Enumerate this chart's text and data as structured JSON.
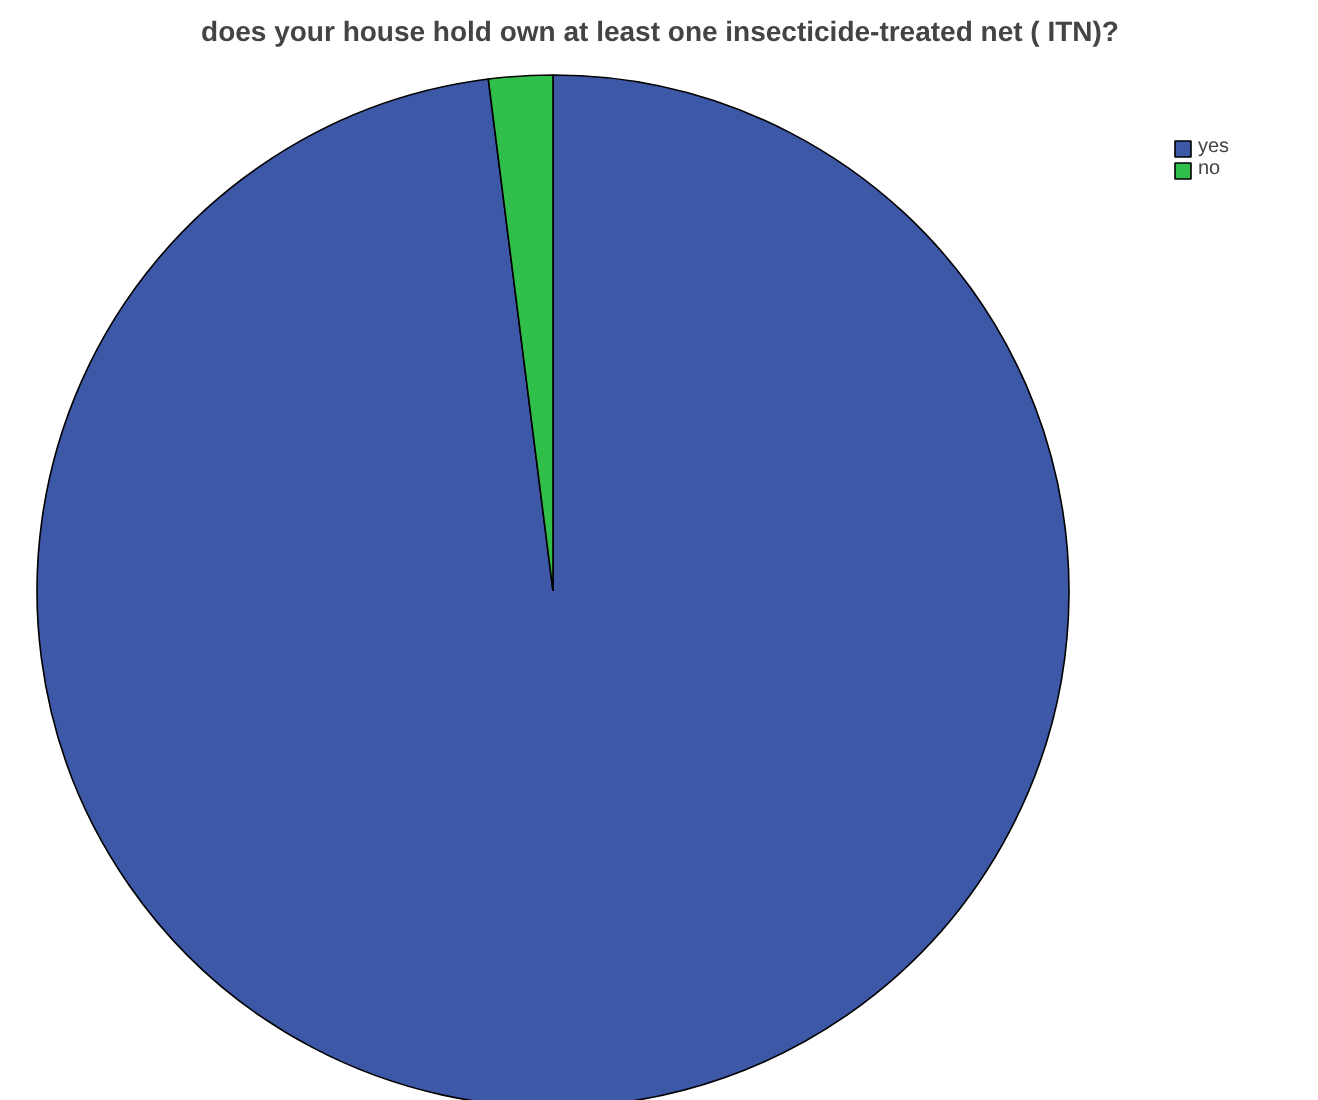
{
  "chart_data": {
    "type": "pie",
    "title": "does your house hold own at least one insecticide-treated net ( ITN)?",
    "categories": [
      "yes",
      "no"
    ],
    "values": [
      98,
      2
    ],
    "colors": [
      "#3e58a8",
      "#2fbf4a"
    ],
    "legend": "top right"
  }
}
